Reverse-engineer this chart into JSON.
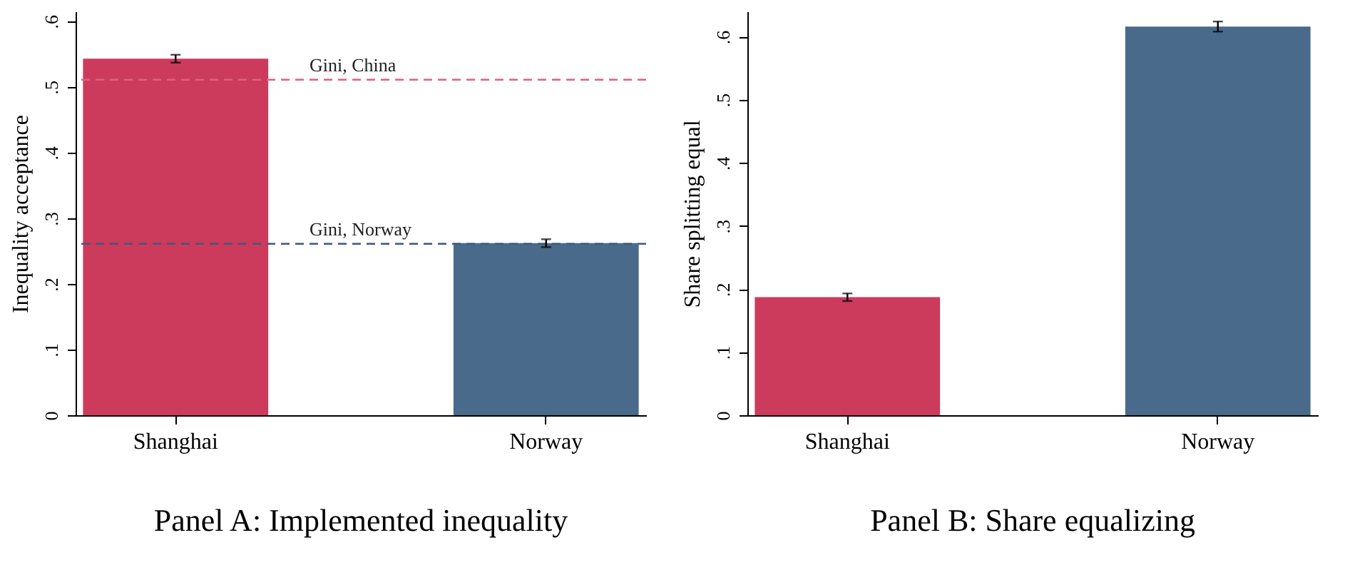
{
  "chart_data": [
    {
      "type": "bar",
      "title": "Panel A: Implemented inequality",
      "ylabel": "Inequality acceptance",
      "categories": [
        "Shanghai",
        "Norway"
      ],
      "values": [
        0.543,
        0.262
      ],
      "colors": [
        "#cc3a5c",
        "#496a8a"
      ],
      "errors": [
        0.006,
        0.006
      ],
      "ylim": [
        0,
        0.615
      ],
      "yticks": [
        0,
        {
          "value": 0.1,
          "label": ".1"
        },
        {
          "value": 0.2,
          "label": ".2"
        },
        {
          "value": 0.3,
          "label": ".3"
        },
        {
          "value": 0.4,
          "label": ".4"
        },
        {
          "value": 0.5,
          "label": ".5"
        },
        {
          "value": 0.6,
          "label": ".6"
        }
      ],
      "ref_lines": [
        {
          "axis": "y",
          "value": 0.511,
          "label": "Gini, China",
          "color": "#e0607e",
          "line_style": "dashed"
        },
        {
          "axis": "y",
          "value": 0.261,
          "label": "Gini, Norway",
          "color": "#3d5a7a",
          "line_style": "dashed"
        }
      ],
      "grid": false
    },
    {
      "type": "bar",
      "title": "Panel B: Share equalizing",
      "ylabel": "Share splitting equal",
      "categories": [
        "Shanghai",
        "Norway"
      ],
      "values": [
        0.187,
        0.616
      ],
      "colors": [
        "#cc3a5c",
        "#496a8a"
      ],
      "errors": [
        0.006,
        0.008
      ],
      "ylim": [
        0,
        0.64
      ],
      "yticks": [
        0,
        {
          "value": 0.1,
          "label": ".1"
        },
        {
          "value": 0.2,
          "label": ".2"
        },
        {
          "value": 0.3,
          "label": ".3"
        },
        {
          "value": 0.4,
          "label": ".4"
        },
        {
          "value": 0.5,
          "label": ".5"
        },
        {
          "value": 0.6,
          "label": ".6"
        }
      ],
      "grid": false
    }
  ]
}
